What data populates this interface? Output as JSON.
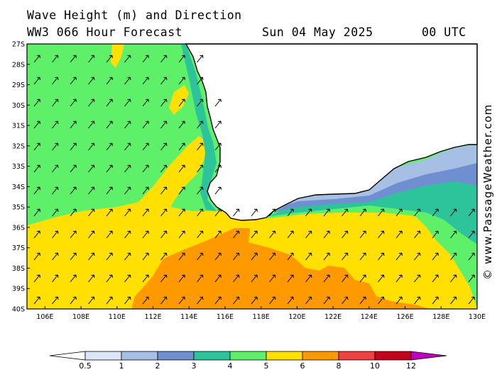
{
  "header": {
    "title": "Wave Height (m) and Direction",
    "model": "WW3 066 Hour Forecast",
    "date": "Sun 04 May 2025",
    "time": "00 UTC"
  },
  "map": {
    "lat_labels": [
      "27S",
      "28S",
      "29S",
      "30S",
      "31S",
      "32S",
      "33S",
      "34S",
      "35S",
      "36S",
      "37S",
      "38S",
      "39S",
      "40S"
    ],
    "lon_labels": [
      "106E",
      "108E",
      "110E",
      "112E",
      "114E",
      "116E",
      "118E",
      "120E",
      "122E",
      "124E",
      "126E",
      "128E",
      "130E"
    ],
    "lat_range": [
      -27,
      -40
    ],
    "lon_range": [
      105,
      130
    ],
    "arrow_direction": "northeast",
    "colors": {
      "land": "#ffffff",
      "coast": "#000000",
      "band_3_4": "#2ec49b",
      "band_4_5": "#5ff06a",
      "band_5_6": "#ffe000",
      "band_6_8": "#ff9900"
    }
  },
  "legend": {
    "ticks": [
      "0.5",
      "1",
      "2",
      "3",
      "4",
      "5",
      "6",
      "8",
      "10",
      "12"
    ],
    "colors": [
      "#ffffff",
      "#dde6f7",
      "#a6bfe3",
      "#6f8fd0",
      "#2ec49b",
      "#5ff06a",
      "#ffe000",
      "#ff9900",
      "#f0403f",
      "#c4001d",
      "#c000c0"
    ]
  },
  "credit": "© www.PassageWeather.com"
}
